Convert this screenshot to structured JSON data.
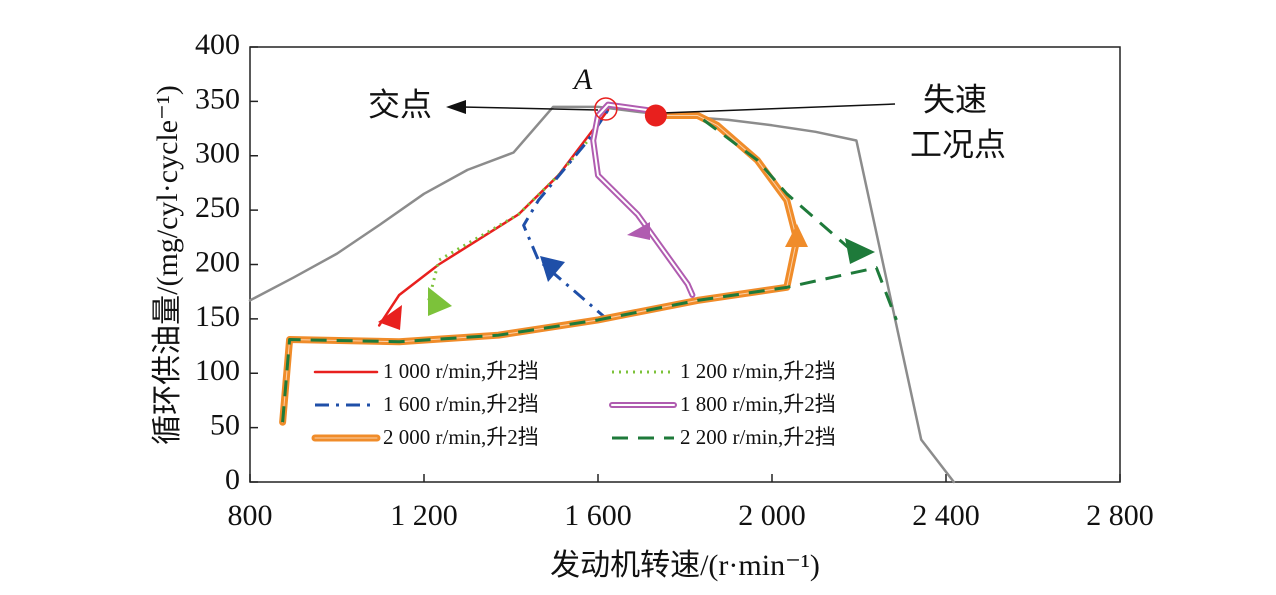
{
  "chart_data": {
    "type": "line",
    "x_label": "发动机转速/(r·min⁻¹)",
    "y_label": "循环供油量/(mg/cyl·cycle⁻¹)",
    "xlim": [
      800,
      2800
    ],
    "ylim": [
      0,
      400
    ],
    "xticks": [
      {
        "value": 800,
        "label": "800"
      },
      {
        "value": 1200,
        "label": "1 200"
      },
      {
        "value": 1600,
        "label": "1 600"
      },
      {
        "value": 2000,
        "label": "2 000"
      },
      {
        "value": 2400,
        "label": "2 400"
      },
      {
        "value": 2800,
        "label": "2 800"
      }
    ],
    "yticks": [
      0,
      50,
      100,
      150,
      200,
      250,
      300,
      350,
      400
    ],
    "series": [
      {
        "color": "#8c8c8c",
        "style": "solid",
        "x": [
          800,
          900,
          1000,
          1100,
          1200,
          1300,
          1406,
          1497,
          1600,
          1700,
          1800,
          1900,
          2000,
          2100,
          2194,
          2343,
          2418
        ],
        "values": [
          167,
          188,
          210,
          237,
          265,
          287,
          303,
          345,
          345,
          340,
          336,
          333,
          328,
          322,
          314,
          39,
          0
        ]
      },
      {
        "name": "1 000 r/min,升2挡",
        "color": "#e8201e",
        "style": "solid",
        "x": [
          1097,
          1143,
          1234,
          1417,
          1509,
          1623
        ],
        "values": [
          144,
          172,
          200,
          246,
          282,
          342
        ]
      },
      {
        "name": "1 200 r/min,升2挡",
        "color": "#7cc23a",
        "style": "dotted",
        "x": [
          1211,
          1234,
          1417,
          1509,
          1577
        ],
        "values": [
          167,
          204,
          246,
          282,
          314
        ]
      },
      {
        "name": "1 600 r/min,升2挡",
        "color": "#1f4fa8",
        "style": "dashdot",
        "x": [
          1623,
          1463,
          1429,
          1463,
          1577,
          1623
        ],
        "values": [
          149,
          204,
          236,
          259,
          314,
          342
        ]
      },
      {
        "name": "1 800 r/min,升2挡",
        "color": "#b05cb0",
        "style": "double",
        "x": [
          1817,
          1806,
          1691,
          1600,
          1589,
          1600,
          1623,
          1714
        ],
        "values": [
          172,
          182,
          246,
          282,
          314,
          337,
          347,
          342
        ]
      },
      {
        "name": "2 000 r/min,升2挡",
        "color": "#f08c2a",
        "style": "thick",
        "x": [
          875,
          891,
          1143,
          1371,
          1600,
          1829,
          2034,
          2046,
          2057,
          2034,
          1966,
          1874,
          1829,
          1737
        ],
        "values": [
          55,
          131,
          129,
          135,
          149,
          167,
          179,
          202,
          223,
          259,
          296,
          328,
          337,
          337
        ]
      },
      {
        "name": "2 200 r/min,升2挡",
        "color": "#1e7a3a",
        "style": "dashed",
        "x": [
          875,
          891,
          1143,
          1371,
          1600,
          1829,
          2034,
          2240,
          2286,
          null,
          2183,
          2034,
          1966,
          1829
        ],
        "values": [
          55,
          131,
          129,
          135,
          149,
          167,
          179,
          197,
          149,
          null,
          213,
          265,
          296,
          337
        ]
      }
    ],
    "intersection": {
      "label": "A",
      "x": 1618,
      "y": 343
    },
    "stall_point": {
      "x": 1733,
      "y": 337,
      "color": "#e8201e"
    },
    "annotations": [
      "交点",
      "失速",
      "工况点"
    ]
  }
}
